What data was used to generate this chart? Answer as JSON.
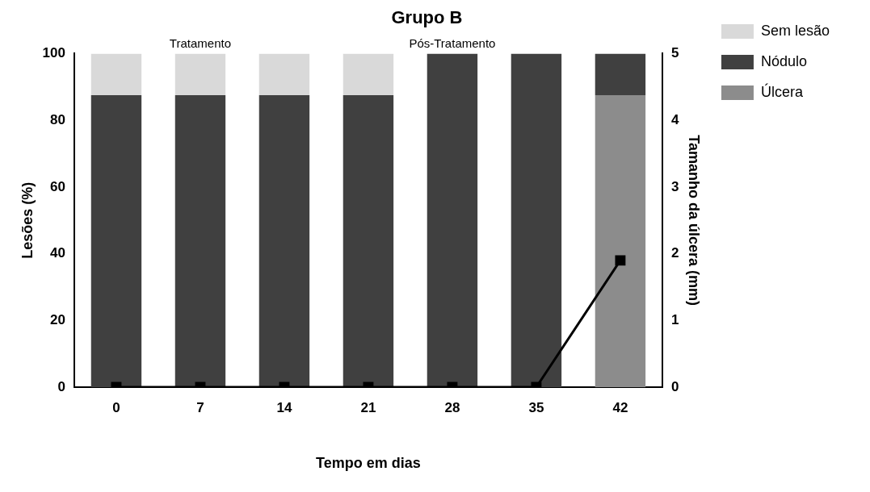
{
  "chart_data": {
    "type": "bar",
    "title": "Grupo B",
    "xlabel": "Tempo em dias",
    "ylabel": "Lesões (%)",
    "y2label": "Tamanho da úlcera (mm)",
    "categories": [
      "0",
      "7",
      "14",
      "21",
      "28",
      "35",
      "42"
    ],
    "stacked": true,
    "series": [
      {
        "name": "Úlcera",
        "color": "#8c8c8c",
        "values": [
          0,
          0,
          0,
          0,
          0,
          0,
          87.5
        ]
      },
      {
        "name": "Nódulo",
        "color": "#404040",
        "values": [
          87.5,
          87.5,
          87.5,
          87.5,
          100,
          100,
          12.5
        ]
      },
      {
        "name": "Sem lesão",
        "color": "#d9d9d9",
        "values": [
          12.5,
          12.5,
          12.5,
          12.5,
          0,
          0,
          0
        ]
      },
      {
        "type": "line",
        "axis": "y2",
        "color": "#000000",
        "marker": "square",
        "values": [
          0,
          0,
          0,
          0,
          0,
          0,
          1.9
        ]
      }
    ],
    "ylim": [
      0,
      100
    ],
    "yticks": [
      0,
      20,
      40,
      60,
      80,
      100
    ],
    "y2lim": [
      0,
      5
    ],
    "y2ticks": [
      0,
      1,
      2,
      3,
      4,
      5
    ],
    "annotations": [
      {
        "text": "Tratamento",
        "x": "7",
        "y": 100
      },
      {
        "text": "Pós-Tratamento",
        "x": "28",
        "y": 100
      }
    ],
    "grid": false,
    "legend": "top right"
  }
}
